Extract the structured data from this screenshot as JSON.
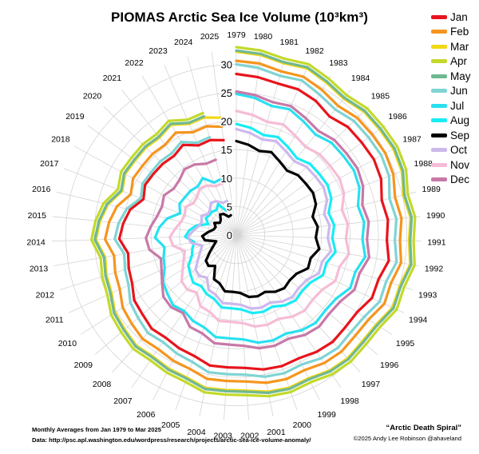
{
  "chart_data": {
    "type": "polar-line",
    "title": "PIOMAS Arctic Sea Ice Volume (10³km³)",
    "radial_ticks": [
      "0",
      "5",
      "10",
      "15",
      "20",
      "25",
      "30"
    ],
    "radial_tick_values": [
      0,
      5,
      10,
      15,
      20,
      25,
      30
    ],
    "rlim": [
      0,
      33
    ],
    "angular_unit": "year",
    "years": [
      1979,
      1980,
      1981,
      1982,
      1983,
      1984,
      1985,
      1986,
      1987,
      1988,
      1989,
      1990,
      1991,
      1992,
      1993,
      1994,
      1995,
      1996,
      1997,
      1998,
      1999,
      2000,
      2001,
      2002,
      2003,
      2004,
      2005,
      2006,
      2007,
      2008,
      2009,
      2010,
      2011,
      2012,
      2013,
      2014,
      2015,
      2016,
      2017,
      2018,
      2019,
      2020,
      2021,
      2022,
      2023,
      2024,
      2025
    ],
    "year_labels": [
      "1979",
      "1980",
      "1981",
      "1982",
      "1983",
      "1984",
      "1985",
      "1986",
      "1987",
      "1988",
      "1989",
      "1990",
      "1991",
      "1992",
      "1993",
      "1994",
      "1995",
      "1996",
      "1997",
      "1998",
      "1999",
      "2000",
      "2001",
      "2002",
      "2003",
      "2004",
      "2005",
      "2006",
      "2007",
      "2008",
      "2009",
      "2010",
      "2011",
      "2012",
      "2013",
      "2014",
      "2015",
      "2016",
      "2017",
      "2018",
      "2019",
      "2020",
      "2021",
      "2022",
      "2023",
      "2024",
      "2025"
    ],
    "series": [
      {
        "name": "Jan",
        "color": "#e8141c",
        "values": [
          28.3,
          28.0,
          27.6,
          27.8,
          27.4,
          26.5,
          27.3,
          27.4,
          27.6,
          27.3,
          26.3,
          26.8,
          26.5,
          27.2,
          26.2,
          26.3,
          25.2,
          25.1,
          25.3,
          24.9,
          24.3,
          24.4,
          24.1,
          23.4,
          23.3,
          23.4,
          22.5,
          22.3,
          21.9,
          22.2,
          21.6,
          21.3,
          20.2,
          19.8,
          19.3,
          20.6,
          20.0,
          19.2,
          17.5,
          18.3,
          18.1,
          18.0,
          17.7,
          18.4,
          17.1,
          17.3,
          16.8
        ]
      },
      {
        "name": "Feb",
        "color": "#f5951f",
        "values": [
          30.6,
          30.4,
          29.8,
          30.2,
          29.6,
          28.9,
          29.6,
          29.7,
          29.9,
          29.6,
          28.7,
          29.2,
          28.8,
          29.4,
          28.5,
          28.7,
          27.6,
          27.4,
          27.6,
          27.3,
          26.6,
          26.8,
          26.5,
          25.8,
          25.7,
          25.8,
          24.9,
          24.7,
          24.3,
          24.6,
          24.1,
          23.7,
          22.6,
          22.3,
          21.8,
          23.1,
          22.5,
          21.6,
          19.9,
          20.7,
          20.5,
          20.5,
          20.2,
          20.9,
          19.6,
          19.8,
          19.2
        ]
      },
      {
        "name": "Mar",
        "color": "#f2d816",
        "values": [
          32.2,
          31.9,
          31.3,
          31.8,
          31.1,
          30.5,
          31.2,
          31.3,
          31.5,
          31.2,
          30.2,
          30.8,
          30.4,
          31.0,
          30.1,
          30.3,
          29.2,
          29.0,
          29.2,
          28.9,
          28.2,
          28.4,
          28.1,
          27.4,
          27.3,
          27.4,
          26.5,
          26.3,
          25.9,
          26.2,
          25.7,
          25.3,
          24.2,
          23.9,
          23.4,
          24.7,
          24.1,
          23.2,
          21.5,
          22.3,
          22.1,
          22.1,
          21.8,
          22.5,
          21.2,
          21.4,
          20.8
        ]
      },
      {
        "name": "Apr",
        "color": "#c3d92a",
        "values": [
          33.0,
          32.7,
          32.1,
          32.6,
          31.9,
          31.3,
          32.0,
          32.1,
          32.3,
          32.0,
          31.0,
          31.6,
          31.2,
          31.8,
          30.9,
          31.1,
          30.0,
          29.8,
          30.0,
          29.7,
          29.0,
          29.2,
          28.9,
          28.2,
          28.1,
          28.2,
          27.3,
          27.1,
          26.7,
          27.0,
          26.5,
          26.1,
          25.0,
          24.7,
          24.2,
          25.5,
          24.9,
          24.0,
          22.3,
          23.1,
          22.9,
          22.9,
          22.6,
          23.3,
          22.0,
          22.2,
          null
        ]
      },
      {
        "name": "May",
        "color": "#6fb891",
        "values": [
          32.4,
          32.1,
          31.5,
          32.0,
          31.3,
          30.7,
          31.4,
          31.5,
          31.7,
          31.4,
          30.4,
          31.0,
          30.6,
          31.2,
          30.3,
          30.5,
          29.4,
          29.2,
          29.4,
          29.1,
          28.4,
          28.6,
          28.3,
          27.6,
          27.5,
          27.6,
          26.7,
          26.5,
          26.1,
          26.4,
          25.9,
          25.5,
          24.4,
          24.1,
          23.6,
          24.9,
          24.3,
          23.4,
          21.7,
          22.5,
          22.3,
          22.3,
          22.0,
          22.7,
          21.4,
          21.6,
          null
        ]
      },
      {
        "name": "Jun",
        "color": "#7fd4d4",
        "values": [
          30.0,
          29.6,
          29.0,
          29.5,
          28.7,
          28.1,
          28.8,
          28.9,
          29.1,
          28.8,
          27.7,
          28.3,
          27.9,
          28.6,
          27.6,
          27.8,
          26.7,
          26.4,
          26.7,
          26.3,
          25.5,
          25.7,
          25.4,
          24.6,
          24.5,
          24.6,
          23.6,
          23.3,
          22.8,
          23.2,
          22.6,
          22.1,
          20.9,
          20.5,
          20.0,
          21.4,
          20.8,
          19.8,
          18.0,
          18.8,
          18.6,
          18.6,
          18.3,
          19.0,
          17.6,
          17.8,
          null
        ]
      },
      {
        "name": "Jul",
        "color": "#28e0f0",
        "values": [
          24.8,
          24.3,
          23.5,
          24.0,
          23.2,
          22.5,
          23.3,
          23.4,
          23.6,
          23.2,
          22.0,
          22.6,
          22.2,
          23.0,
          21.9,
          22.1,
          20.8,
          20.5,
          20.8,
          20.3,
          19.4,
          19.6,
          19.3,
          18.4,
          18.2,
          18.3,
          17.2,
          16.9,
          16.2,
          16.6,
          15.9,
          15.3,
          13.9,
          13.4,
          12.8,
          14.3,
          13.6,
          12.5,
          10.6,
          11.4,
          11.2,
          11.2,
          10.9,
          11.6,
          10.0,
          10.2,
          null
        ]
      },
      {
        "name": "Aug",
        "color": "#19ecf5",
        "values": [
          19.5,
          19.0,
          18.2,
          18.7,
          17.9,
          17.2,
          18.0,
          18.1,
          18.3,
          17.9,
          16.7,
          17.3,
          16.9,
          17.7,
          16.6,
          16.8,
          15.5,
          15.2,
          15.5,
          15.0,
          14.1,
          14.3,
          14.0,
          13.1,
          12.9,
          13.0,
          11.9,
          11.6,
          10.9,
          11.3,
          10.6,
          10.0,
          8.6,
          8.1,
          7.5,
          9.0,
          8.3,
          7.2,
          5.3,
          6.1,
          5.9,
          5.9,
          5.6,
          6.3,
          4.7,
          4.9,
          null
        ]
      },
      {
        "name": "Sep",
        "color": "#000000",
        "values": [
          16.5,
          16.0,
          15.3,
          15.8,
          15.0,
          14.4,
          15.1,
          15.2,
          15.4,
          15.0,
          13.8,
          14.4,
          14.0,
          14.8,
          13.7,
          13.9,
          12.6,
          12.3,
          12.6,
          12.1,
          11.2,
          11.4,
          11.1,
          10.2,
          10.0,
          10.1,
          9.0,
          8.7,
          6.6,
          7.3,
          7.0,
          5.5,
          4.4,
          3.7,
          5.6,
          6.0,
          5.0,
          4.1,
          3.9,
          4.4,
          3.6,
          3.8,
          4.6,
          4.3,
          3.5,
          3.6,
          null
        ]
      },
      {
        "name": "Oct",
        "color": "#cdb8ec",
        "values": [
          18.6,
          18.1,
          17.4,
          17.9,
          17.1,
          16.5,
          17.2,
          17.3,
          17.5,
          17.1,
          15.9,
          16.5,
          16.1,
          16.9,
          15.8,
          16.0,
          14.7,
          14.4,
          14.7,
          14.2,
          13.3,
          13.5,
          13.2,
          12.3,
          12.1,
          12.2,
          11.1,
          10.8,
          9.1,
          9.7,
          9.4,
          8.0,
          7.0,
          6.3,
          8.1,
          8.5,
          7.6,
          6.8,
          6.5,
          7.0,
          6.2,
          6.4,
          7.2,
          6.9,
          6.1,
          6.2,
          null
        ]
      },
      {
        "name": "Nov",
        "color": "#f6bcd6",
        "values": [
          21.8,
          21.3,
          20.6,
          21.1,
          20.3,
          19.7,
          20.4,
          20.5,
          20.7,
          20.3,
          19.1,
          19.7,
          19.3,
          20.1,
          19.0,
          19.2,
          17.9,
          17.6,
          17.9,
          17.4,
          16.5,
          16.7,
          16.4,
          15.5,
          15.3,
          15.4,
          14.3,
          14.0,
          12.3,
          12.9,
          12.6,
          11.2,
          10.2,
          9.5,
          11.3,
          11.7,
          10.8,
          10.0,
          9.7,
          10.2,
          9.4,
          9.6,
          10.4,
          10.1,
          9.3,
          9.4,
          null
        ]
      },
      {
        "name": "Dec",
        "color": "#c879a8",
        "values": [
          25.2,
          24.8,
          24.2,
          24.6,
          23.9,
          23.3,
          24.0,
          24.1,
          24.3,
          23.9,
          22.8,
          23.4,
          23.0,
          23.7,
          22.7,
          22.9,
          21.7,
          21.4,
          21.7,
          21.3,
          20.4,
          20.6,
          20.3,
          19.5,
          19.3,
          19.4,
          18.3,
          18.1,
          16.6,
          17.1,
          16.8,
          15.5,
          14.5,
          13.9,
          15.5,
          15.9,
          15.1,
          14.3,
          14.0,
          14.5,
          13.7,
          13.9,
          14.7,
          14.4,
          13.6,
          13.7,
          null
        ]
      }
    ],
    "legend_position": "top-right",
    "grid": true
  },
  "footer": {
    "range_text": "Monthly Averages from Jan 1979 to Mar 2025",
    "data_text": "Data: http://psc.apl.washington.edu/wordpress/research/projects/arctic-sea-ice-volume-anomaly/",
    "name_text": "“Arctic Death Spiral”",
    "credit_text": "©2025 Andy Lee Robinson @ahaveland"
  }
}
